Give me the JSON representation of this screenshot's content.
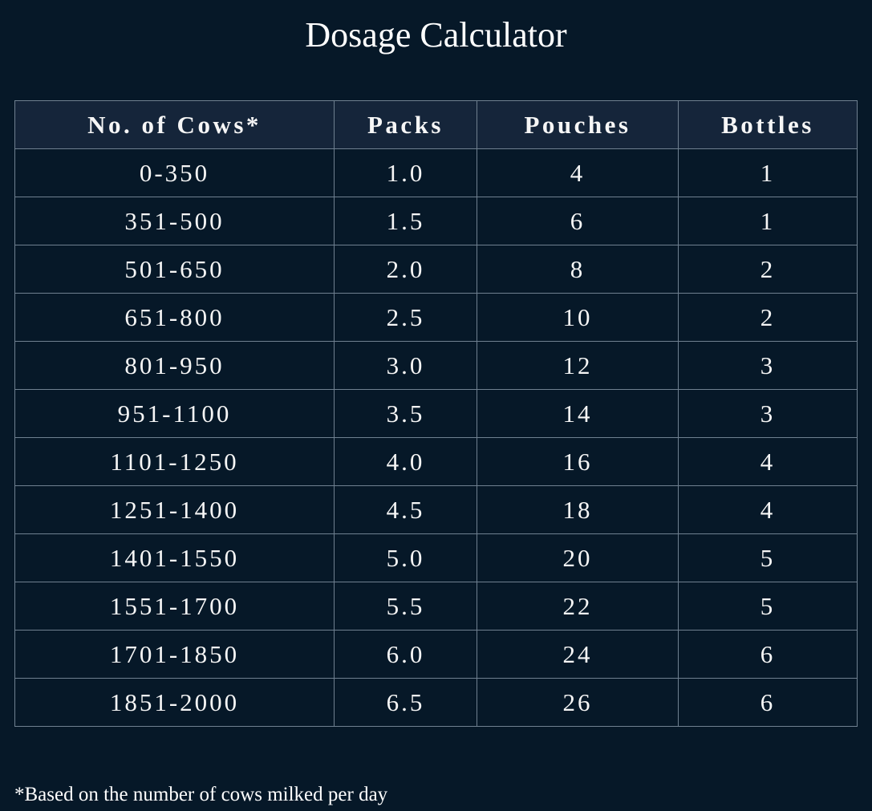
{
  "title": "Dosage Calculator",
  "table": {
    "headers": [
      "No. of Cows*",
      "Packs",
      "Pouches",
      "Bottles"
    ],
    "rows": [
      [
        "0-350",
        "1.0",
        "4",
        "1"
      ],
      [
        "351-500",
        "1.5",
        "6",
        "1"
      ],
      [
        "501-650",
        "2.0",
        "8",
        "2"
      ],
      [
        "651-800",
        "2.5",
        "10",
        "2"
      ],
      [
        "801-950",
        "3.0",
        "12",
        "3"
      ],
      [
        "951-1100",
        "3.5",
        "14",
        "3"
      ],
      [
        "1101-1250",
        "4.0",
        "16",
        "4"
      ],
      [
        "1251-1400",
        "4.5",
        "18",
        "4"
      ],
      [
        "1401-1550",
        "5.0",
        "20",
        "5"
      ],
      [
        "1551-1700",
        "5.5",
        "22",
        "5"
      ],
      [
        "1701-1850",
        "6.0",
        "24",
        "6"
      ],
      [
        "1851-2000",
        "6.5",
        "26",
        "6"
      ]
    ]
  },
  "footnote": "*Based on the number of cows milked per day",
  "colors": {
    "background": "#061828",
    "header": "#15253a",
    "border": "#6f8090",
    "text": "#ffffff"
  }
}
